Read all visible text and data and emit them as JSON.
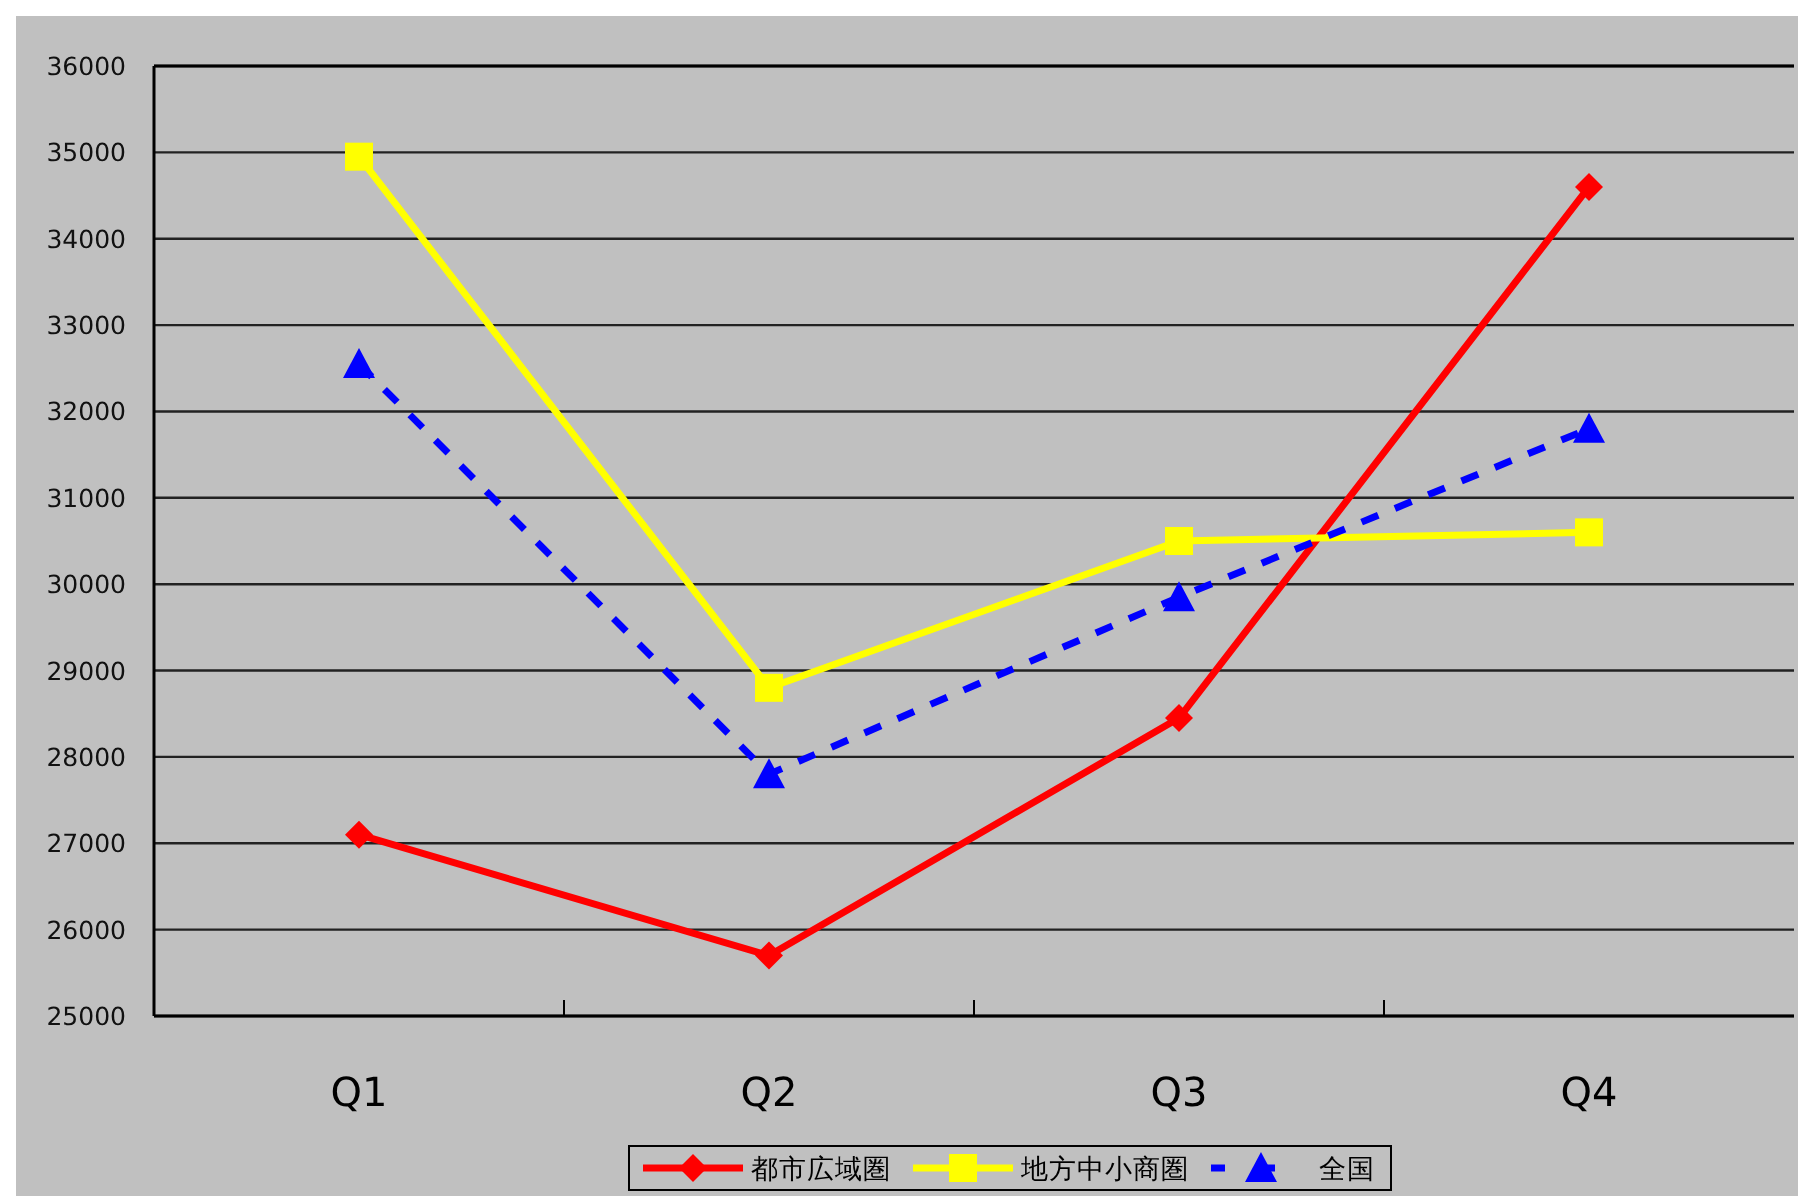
{
  "chart_data": {
    "type": "line",
    "categories": [
      "Q1",
      "Q2",
      "Q3",
      "Q4"
    ],
    "series": [
      {
        "name": "都市広域圏",
        "color": "#ff0000",
        "marker": "diamond",
        "line_style": "solid",
        "values": [
          27100,
          25700,
          28450,
          34600
        ]
      },
      {
        "name": "地方中小商圏",
        "color": "#ffff00",
        "marker": "square",
        "line_style": "solid",
        "values": [
          34950,
          28800,
          30500,
          30600
        ]
      },
      {
        "name": "全国",
        "color": "#0000ff",
        "marker": "triangle",
        "line_style": "dashed",
        "values": [
          32550,
          27800,
          29850,
          31800
        ]
      }
    ],
    "ylim": [
      25000,
      36000
    ],
    "yticks": [
      25000,
      26000,
      27000,
      28000,
      29000,
      30000,
      31000,
      32000,
      33000,
      34000,
      35000,
      36000
    ],
    "grid": "y",
    "legend": "bottom"
  }
}
